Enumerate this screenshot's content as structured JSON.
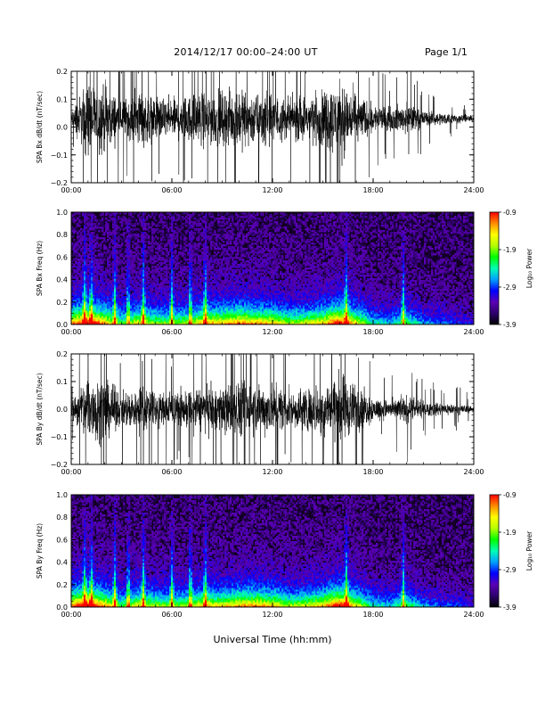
{
  "header": {
    "title": "2014/12/17   00:00–24:00 UT",
    "page": "Page 1/1"
  },
  "x_axis_title": "Universal Time (hh:mm)",
  "colors": {
    "trace": "#000000",
    "colormap": [
      "#000000",
      "#2d006e",
      "#5a00b4",
      "#0000ff",
      "#00a0ff",
      "#00ffb4",
      "#00ff00",
      "#b4ff00",
      "#ffff00",
      "#ff8c00",
      "#ff0000"
    ]
  },
  "chart_data": [
    {
      "type": "line",
      "ylabel": "SPA Bx dB/dt (nT/sec)",
      "ylim": [
        -0.2,
        0.2
      ],
      "yticks": [
        "0.2",
        "0.1",
        "0.0",
        "−0.1",
        "−0.2"
      ],
      "ytick_values": [
        0.2,
        0.1,
        0.0,
        -0.1,
        -0.2
      ],
      "xlim": [
        "00:00",
        "24:00"
      ],
      "xticks": [
        "00:00",
        "06:00",
        "12:00",
        "18:00",
        "24:00"
      ],
      "x_hours": [
        0,
        1,
        2,
        3,
        4,
        5,
        6,
        7,
        8,
        9,
        10,
        11,
        12,
        13,
        14,
        15,
        16,
        17,
        18,
        19,
        20,
        21,
        22,
        23,
        24
      ],
      "amplitude": [
        0.05,
        0.25,
        0.22,
        0.12,
        0.18,
        0.14,
        0.13,
        0.15,
        0.18,
        0.17,
        0.19,
        0.17,
        0.16,
        0.13,
        0.15,
        0.18,
        0.25,
        0.16,
        0.09,
        0.07,
        0.1,
        0.05,
        0.04,
        0.03,
        0.02
      ],
      "baseline": 0.03
    },
    {
      "type": "heatmap",
      "ylabel": "SPA Bx Freq (Hz)",
      "ylim": [
        0.0,
        1.0
      ],
      "yticks": [
        "1.0",
        "0.8",
        "0.6",
        "0.4",
        "0.2",
        "0.0"
      ],
      "ytick_values": [
        1.0,
        0.8,
        0.6,
        0.4,
        0.2,
        0.0
      ],
      "xlim": [
        "00:00",
        "24:00"
      ],
      "xticks": [
        "00:00",
        "06:00",
        "12:00",
        "18:00",
        "24:00"
      ],
      "colorbar": {
        "label": "Log₁₀ Power",
        "range": [
          -3.9,
          -0.9
        ],
        "ticks": [
          "-0.9",
          "-1.9",
          "-2.9",
          "-3.9"
        ],
        "tick_values": [
          -0.9,
          -1.9,
          -2.9,
          -3.9
        ]
      },
      "activity": [
        0.8,
        1.0,
        0.8,
        0.5,
        0.7,
        0.6,
        0.55,
        0.6,
        0.8,
        0.75,
        0.85,
        0.8,
        0.75,
        0.6,
        0.65,
        0.75,
        1.0,
        0.7,
        0.4,
        0.35,
        0.5,
        0.3,
        0.25,
        0.2,
        0.15
      ],
      "bursts_hours": [
        0.8,
        1.2,
        2.6,
        3.4,
        4.3,
        6.0,
        7.1,
        8.0,
        16.4,
        19.8
      ]
    },
    {
      "type": "line",
      "ylabel": "SPA By dB/dt (nT/sec)",
      "ylim": [
        -0.2,
        0.2
      ],
      "yticks": [
        "0.2",
        "0.1",
        "0.0",
        "−0.1",
        "−0.2"
      ],
      "ytick_values": [
        0.2,
        0.1,
        0.0,
        -0.1,
        -0.2
      ],
      "xlim": [
        "00:00",
        "24:00"
      ],
      "xticks": [
        "00:00",
        "06:00",
        "12:00",
        "18:00",
        "24:00"
      ],
      "x_hours": [
        0,
        1,
        2,
        3,
        4,
        5,
        6,
        7,
        8,
        9,
        10,
        11,
        12,
        13,
        14,
        15,
        16,
        17,
        18,
        19,
        20,
        21,
        22,
        23,
        24
      ],
      "amplitude": [
        0.05,
        0.25,
        0.2,
        0.1,
        0.15,
        0.12,
        0.11,
        0.13,
        0.15,
        0.15,
        0.17,
        0.16,
        0.16,
        0.12,
        0.14,
        0.17,
        0.24,
        0.15,
        0.08,
        0.06,
        0.09,
        0.05,
        0.04,
        0.04,
        0.02
      ],
      "baseline": 0.0
    },
    {
      "type": "heatmap",
      "ylabel": "SPA By Freq (Hz)",
      "ylim": [
        0.0,
        1.0
      ],
      "yticks": [
        "1.0",
        "0.8",
        "0.6",
        "0.4",
        "0.2",
        "0.0"
      ],
      "ytick_values": [
        1.0,
        0.8,
        0.6,
        0.4,
        0.2,
        0.0
      ],
      "xlim": [
        "00:00",
        "24:00"
      ],
      "xticks": [
        "00:00",
        "06:00",
        "12:00",
        "18:00",
        "24:00"
      ],
      "colorbar": {
        "label": "Log₁₀ Power",
        "range": [
          -3.9,
          -0.9
        ],
        "ticks": [
          "-0.9",
          "-1.9",
          "-2.9",
          "-3.9"
        ],
        "tick_values": [
          -0.9,
          -1.9,
          -2.9,
          -3.9
        ]
      },
      "activity": [
        0.85,
        1.0,
        0.8,
        0.5,
        0.7,
        0.6,
        0.55,
        0.6,
        0.75,
        0.7,
        0.8,
        0.8,
        0.75,
        0.6,
        0.65,
        0.75,
        1.0,
        0.7,
        0.4,
        0.35,
        0.5,
        0.3,
        0.25,
        0.2,
        0.15
      ],
      "bursts_hours": [
        0.8,
        1.2,
        2.6,
        3.4,
        4.3,
        6.0,
        7.1,
        8.0,
        16.4,
        19.8
      ]
    }
  ]
}
